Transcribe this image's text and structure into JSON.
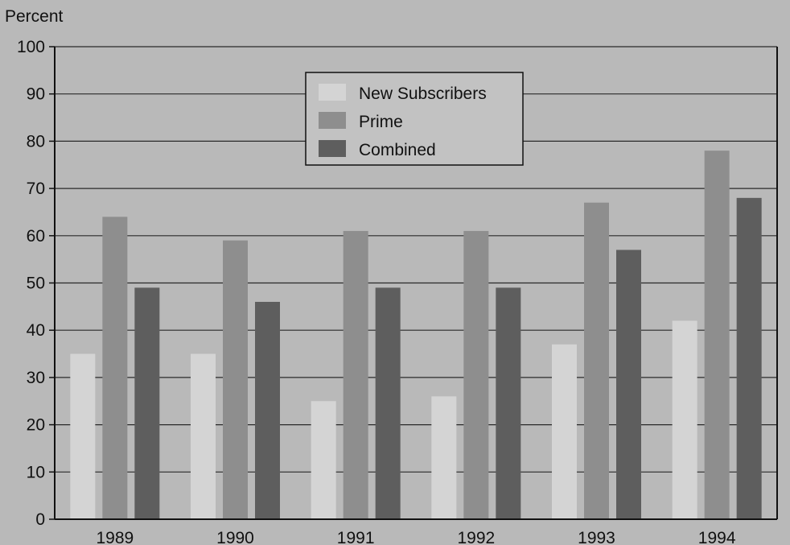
{
  "chart_data": {
    "type": "bar",
    "ylabel": "Percent",
    "ylim": [
      0,
      100
    ],
    "yticks": [
      0,
      10,
      20,
      30,
      40,
      50,
      60,
      70,
      80,
      90,
      100
    ],
    "categories": [
      "1989",
      "1990",
      "1991",
      "1992",
      "1993",
      "1994"
    ],
    "series": [
      {
        "name": "New Subscribers",
        "values": [
          35,
          35,
          25,
          26,
          37,
          42
        ]
      },
      {
        "name": "Prime",
        "values": [
          64,
          59,
          61,
          61,
          67,
          78
        ]
      },
      {
        "name": "Combined",
        "values": [
          49,
          46,
          49,
          49,
          57,
          68
        ]
      }
    ],
    "grid": true,
    "legend_position": "top-center"
  },
  "colors": {
    "background": "#b9b9b9",
    "grid": "#2a2a2a",
    "axis": "#111111",
    "series": [
      "#d4d4d4",
      "#8e8e8e",
      "#5e5e5e"
    ],
    "legend_bg": "#c2c2c2"
  }
}
